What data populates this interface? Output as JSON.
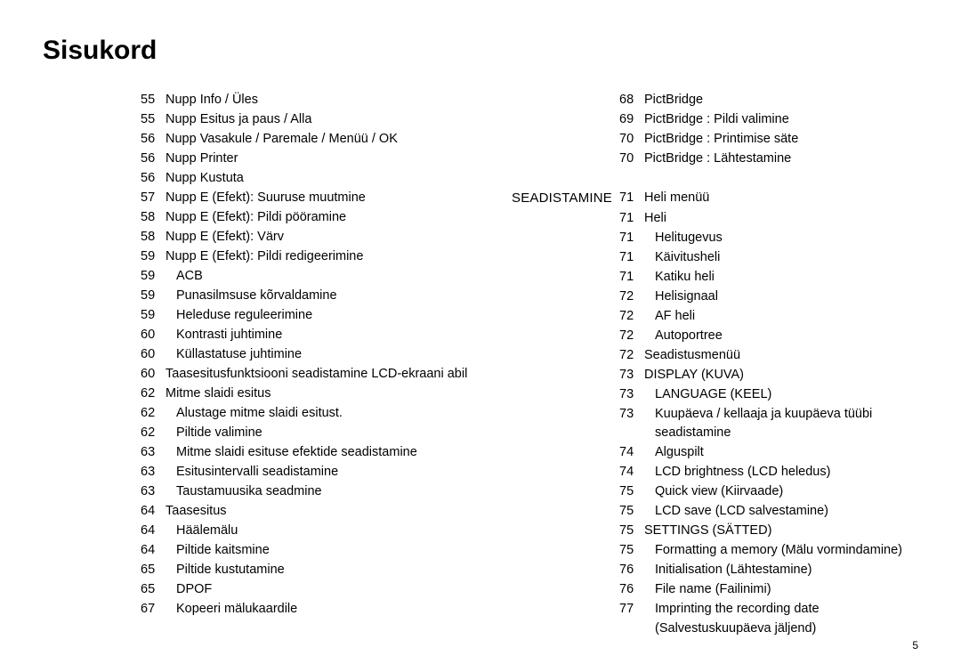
{
  "title": "Sisukord",
  "page_number": "5",
  "left": [
    {
      "num": "55",
      "text": "Nupp Info / Üles",
      "indent": 0
    },
    {
      "num": "55",
      "text": "Nupp Esitus ja paus / Alla",
      "indent": 0
    },
    {
      "num": "56",
      "text": "Nupp Vasakule / Paremale / Menüü / OK",
      "indent": 0
    },
    {
      "num": "56",
      "text": "Nupp Printer",
      "indent": 0
    },
    {
      "num": "56",
      "text": "Nupp Kustuta",
      "indent": 0
    },
    {
      "num": "57",
      "text": "Nupp E (Efekt): Suuruse muutmine",
      "indent": 0
    },
    {
      "num": "58",
      "text": "Nupp E (Efekt): Pildi pööramine",
      "indent": 0
    },
    {
      "num": "58",
      "text": "Nupp E (Efekt): Värv",
      "indent": 0
    },
    {
      "num": "59",
      "text": "Nupp E (Efekt): Pildi redigeerimine",
      "indent": 0
    },
    {
      "num": "59",
      "text": "ACB",
      "indent": 1
    },
    {
      "num": "59",
      "text": "Punasilmsuse kõrvaldamine",
      "indent": 1
    },
    {
      "num": "59",
      "text": "Heleduse reguleerimine",
      "indent": 1
    },
    {
      "num": "60",
      "text": "Kontrasti juhtimine",
      "indent": 1
    },
    {
      "num": "60",
      "text": "Küllastatuse juhtimine",
      "indent": 1
    },
    {
      "num": "60",
      "text": "Taasesitusfunktsiooni seadistamine LCD-ekraani abil",
      "indent": 0
    },
    {
      "num": "62",
      "text": "Mitme slaidi esitus",
      "indent": 0
    },
    {
      "num": "62",
      "text": "Alustage mitme slaidi esitust.",
      "indent": 1
    },
    {
      "num": "62",
      "text": "Piltide valimine",
      "indent": 1
    },
    {
      "num": "63",
      "text": "Mitme slaidi esituse efektide seadistamine",
      "indent": 1
    },
    {
      "num": "63",
      "text": "Esitusintervalli seadistamine",
      "indent": 1
    },
    {
      "num": "63",
      "text": "Taustamuusika seadmine",
      "indent": 1
    },
    {
      "num": "64",
      "text": "Taasesitus",
      "indent": 0
    },
    {
      "num": "64",
      "text": "Häälemälu",
      "indent": 1
    },
    {
      "num": "64",
      "text": "Piltide kaitsmine",
      "indent": 1
    },
    {
      "num": "65",
      "text": "Piltide kustutamine",
      "indent": 1
    },
    {
      "num": "65",
      "text": "DPOF",
      "indent": 1
    },
    {
      "num": "67",
      "text": "Kopeeri mälukaardile",
      "indent": 1
    }
  ],
  "right": [
    {
      "section": "",
      "num": "68",
      "text": "PictBridge",
      "indent": 0
    },
    {
      "section": "",
      "num": "69",
      "text": "PictBridge : Pildi valimine",
      "indent": 0
    },
    {
      "section": "",
      "num": "70",
      "text": "PictBridge : Printimise säte",
      "indent": 0
    },
    {
      "section": "",
      "num": "70",
      "text": "PictBridge : Lähtestamine",
      "indent": 0
    },
    {
      "section": "",
      "num": "",
      "text": "",
      "indent": 0
    },
    {
      "section": "SEADISTAMINE",
      "num": "71",
      "text": "Heli menüü",
      "indent": 0
    },
    {
      "section": "",
      "num": "71",
      "text": "Heli",
      "indent": 0
    },
    {
      "section": "",
      "num": "71",
      "text": "Helitugevus",
      "indent": 1
    },
    {
      "section": "",
      "num": "71",
      "text": "Käivitusheli",
      "indent": 1
    },
    {
      "section": "",
      "num": "71",
      "text": "Katiku heli",
      "indent": 1
    },
    {
      "section": "",
      "num": "72",
      "text": "Helisignaal",
      "indent": 1
    },
    {
      "section": "",
      "num": "72",
      "text": "AF heli",
      "indent": 1
    },
    {
      "section": "",
      "num": "72",
      "text": "Autoportree",
      "indent": 1
    },
    {
      "section": "",
      "num": "72",
      "text": "Seadistusmenüü",
      "indent": 0
    },
    {
      "section": "",
      "num": "73",
      "text": "DISPLAY (KUVA)",
      "indent": 0
    },
    {
      "section": "",
      "num": "73",
      "text": "LANGUAGE (KEEL)",
      "indent": 1
    },
    {
      "section": "",
      "num": "73",
      "text": "Kuupäeva / kellaaja ja kuupäeva tüübi seadistamine",
      "indent": 1
    },
    {
      "section": "",
      "num": "74",
      "text": "Alguspilt",
      "indent": 1
    },
    {
      "section": "",
      "num": "74",
      "text": "LCD brightness (LCD heledus)",
      "indent": 1
    },
    {
      "section": "",
      "num": "75",
      "text": "Quick view (Kiirvaade)",
      "indent": 1
    },
    {
      "section": "",
      "num": "75",
      "text": "LCD save (LCD salvestamine)",
      "indent": 1
    },
    {
      "section": "",
      "num": "75",
      "text": "SETTINGS (SÄTTED)",
      "indent": 0
    },
    {
      "section": "",
      "num": "75",
      "text": "Formatting a memory (Mälu vormindamine)",
      "indent": 1
    },
    {
      "section": "",
      "num": "76",
      "text": "Initialisation (Lähtestamine)",
      "indent": 1
    },
    {
      "section": "",
      "num": "76",
      "text": "File name (Failinimi)",
      "indent": 1
    },
    {
      "section": "",
      "num": "77",
      "text": "Imprinting the recording date (Salvestuskuupäeva jäljend)",
      "indent": 1
    }
  ]
}
